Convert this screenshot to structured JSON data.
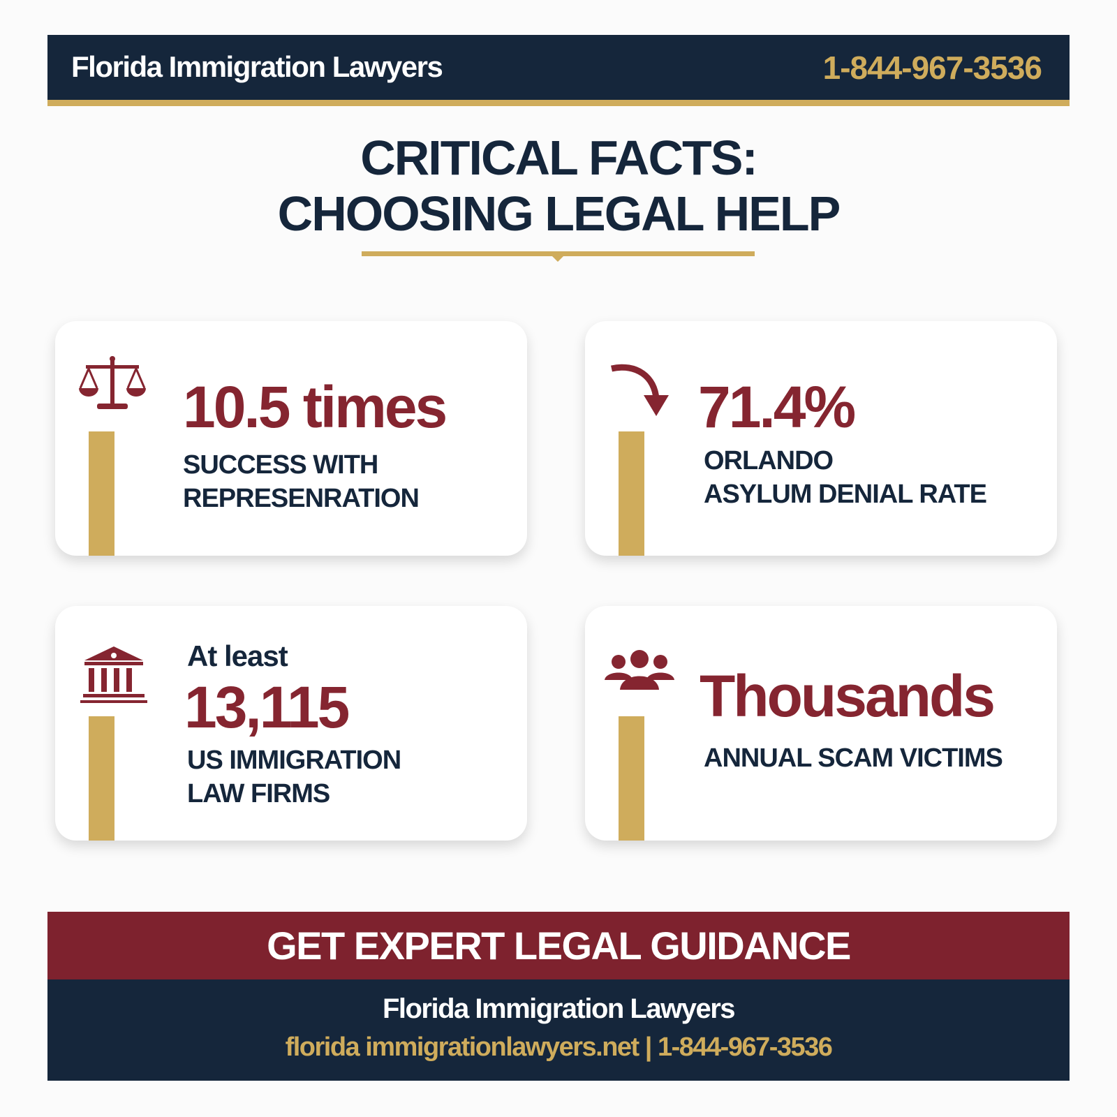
{
  "header": {
    "brand": "Florida Immigration Lawyers",
    "phone": "1-844-967-3536"
  },
  "title": {
    "line1": "CRITICAL FACTS:",
    "line2": "CHOOSING LEGAL HELP"
  },
  "cards": [
    {
      "icon": "scales-of-justice-icon",
      "value": "10.5 times",
      "label_line1": "SUCCESS WITH",
      "label_line2": "REPRESENRATION"
    },
    {
      "icon": "curved-arrow-down-icon",
      "value": "71.4%",
      "label_line1": "ORLANDO",
      "label_line2": "ASYLUM DENIAL RATE"
    },
    {
      "icon": "courthouse-icon",
      "prefix": "At least",
      "value": "13,115",
      "label_line1": "US IMMIGRATION",
      "label_line2": "LAW FIRMS"
    },
    {
      "icon": "people-group-icon",
      "value": "Thousands",
      "label_line1": "ANNUAL SCAM VICTIMS"
    }
  ],
  "cta": {
    "label": "GET EXPERT LEGAL GUIDANCE"
  },
  "footer": {
    "name": "Florida Immigration Lawyers",
    "website": "florida immigrationlawyers.net",
    "separator": "|",
    "phone": "1-844-967-3536"
  },
  "colors": {
    "navy": "#15263b",
    "gold": "#cfac5c",
    "maroon": "#852530"
  }
}
